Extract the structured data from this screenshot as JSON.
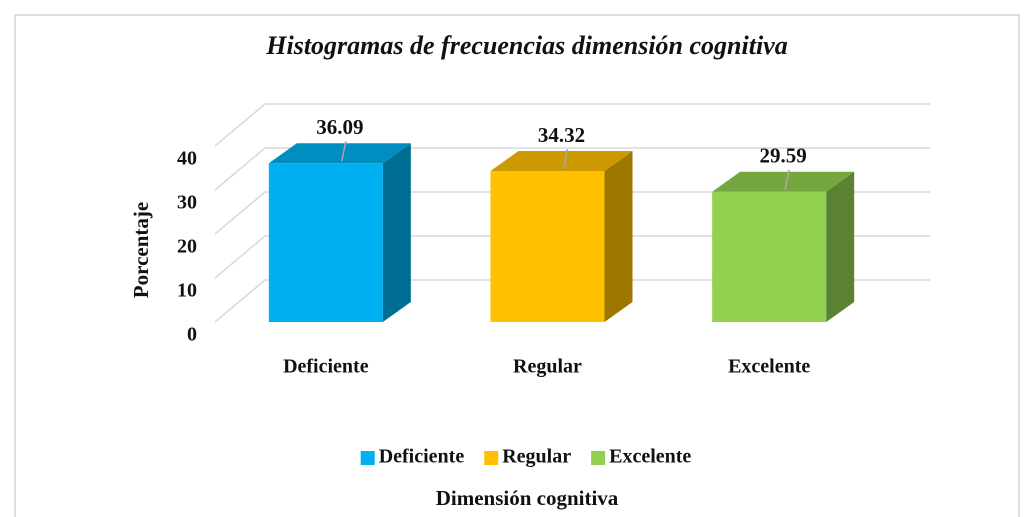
{
  "chart_data": {
    "type": "bar3d",
    "title": "Histogramas de frecuencias dimensión cognitiva",
    "y_label": "Porcentaje",
    "x_label": "Dimensión cognitiva",
    "categories": [
      "Deficiente",
      "Regular",
      "Excelente"
    ],
    "values": [
      36.09,
      34.32,
      29.59
    ],
    "colors": [
      "#00b0f0",
      "#ffc000",
      "#92d050"
    ],
    "ylim": [
      0,
      40
    ],
    "yticks": [
      0,
      10,
      20,
      30,
      40
    ],
    "grid": true,
    "legend": "bottom"
  }
}
